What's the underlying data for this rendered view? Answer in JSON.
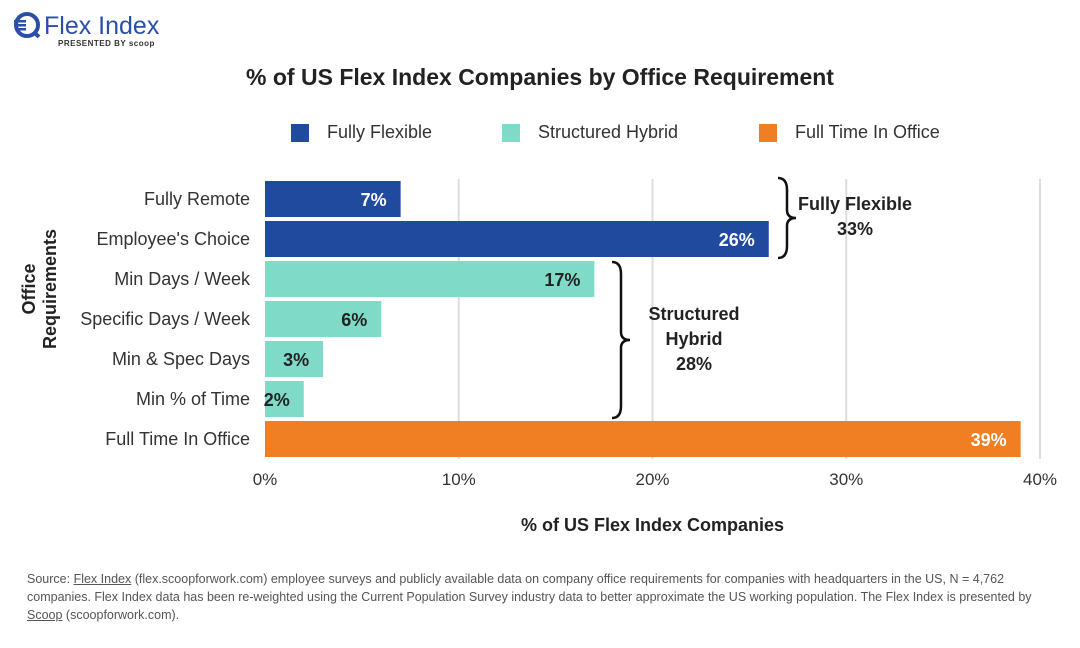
{
  "logo": {
    "name": "Flex Index",
    "sub": "PRESENTED BY scoop"
  },
  "chart_data": {
    "type": "bar",
    "orientation": "horizontal",
    "title": "% of US Flex Index Companies by Office Requirement",
    "xlabel": "% of US Flex Index Companies",
    "ylabel": "Office Requirements",
    "xlim": [
      0,
      40
    ],
    "xticks": [
      0,
      10,
      20,
      30,
      40
    ],
    "xtick_labels": [
      "0%",
      "10%",
      "20%",
      "30%",
      "40%"
    ],
    "grid": "vertical",
    "legend": {
      "placement": "top",
      "entries": [
        {
          "name": "Fully Flexible",
          "color": "#1f4a9e"
        },
        {
          "name": "Structured Hybrid",
          "color": "#7fdbc7"
        },
        {
          "name": "Full Time In Office",
          "color": "#f07f23"
        }
      ]
    },
    "categories": [
      "Fully Remote",
      "Employee's Choice",
      "Min Days / Week",
      "Specific Days / Week",
      "Min & Spec Days",
      "Min % of Time",
      "Full Time In Office"
    ],
    "values": [
      7,
      26,
      17,
      6,
      3,
      2,
      39
    ],
    "labels": [
      "7%",
      "26%",
      "17%",
      "6%",
      "3%",
      "2%",
      "39%"
    ],
    "groups": [
      0,
      0,
      1,
      1,
      1,
      1,
      2
    ],
    "annotations": [
      {
        "lines": [
          "Fully Flexible",
          "33%"
        ]
      },
      {
        "lines": [
          "Structured",
          "Hybrid",
          "28%"
        ]
      }
    ]
  },
  "footer": {
    "prefix": "Source: ",
    "link1": "Flex Index",
    "middle": " (flex.scoopforwork.com) employee surveys and publicly available data on company office requirements for companies with headquarters in the US, N = 4,762 companies. Flex Index data has been re-weighted using the Current Population Survey industry data to better approximate the US working population. The Flex Index is presented by ",
    "link2": "Scoop",
    "suffix": " (scoopforwork.com)."
  }
}
